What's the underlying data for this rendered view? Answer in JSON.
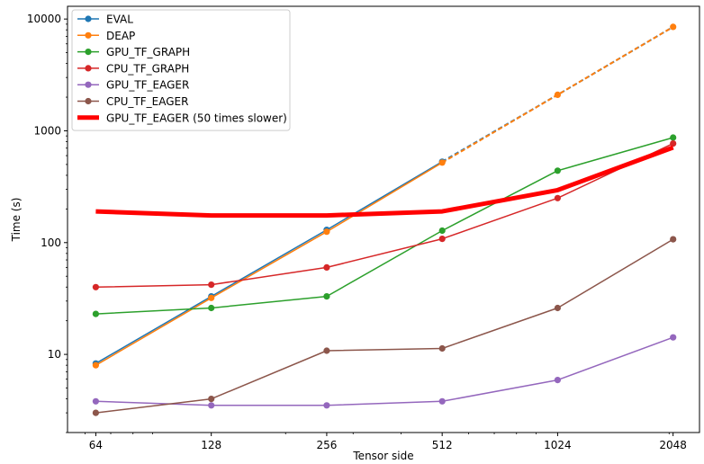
{
  "chart_data": {
    "type": "line",
    "title": "",
    "xlabel": "Tensor side",
    "ylabel": "Time (s)",
    "xscale": "log2",
    "yscale": "log10",
    "xlim": [
      54,
      2400
    ],
    "ylim": [
      2,
      13000
    ],
    "x_ticks": [
      64,
      128,
      256,
      512,
      1024,
      2048
    ],
    "x_tick_labels": [
      "64",
      "128",
      "256",
      "512",
      "1024",
      "2048"
    ],
    "y_ticks": [
      10,
      100,
      1000,
      10000
    ],
    "y_tick_labels": [
      "10",
      "100",
      "1000",
      "10000"
    ],
    "grid": false,
    "legend_position": "top-left",
    "series": [
      {
        "name": "EVAL",
        "color": "#1f77b4",
        "x": [
          64,
          128,
          256,
          512
        ],
        "values": [
          8.3,
          33,
          130,
          530
        ],
        "dashed_x": [
          512,
          1024,
          2048
        ],
        "dashed_values": [
          530,
          2100,
          8500
        ],
        "marker": true,
        "width": 1.5
      },
      {
        "name": "DEAP",
        "color": "#ff7f0e",
        "x": [
          64,
          128,
          256,
          512,
          1024,
          2048
        ],
        "values": [
          8.0,
          32,
          125,
          520,
          2100,
          8500
        ],
        "dashed_from_index": 3,
        "marker": true,
        "width": 1.5
      },
      {
        "name": "GPU_TF_GRAPH",
        "color": "#2ca02c",
        "x": [
          64,
          128,
          256,
          512,
          1024,
          2048
        ],
        "values": [
          23,
          26,
          33,
          128,
          440,
          870
        ],
        "marker": true,
        "width": 1.5
      },
      {
        "name": "CPU_TF_GRAPH",
        "color": "#d62728",
        "x": [
          64,
          128,
          256,
          512,
          1024,
          2048
        ],
        "values": [
          40,
          42,
          60,
          108,
          250,
          770
        ],
        "marker": true,
        "width": 1.5
      },
      {
        "name": "GPU_TF_EAGER",
        "color": "#9467bd",
        "x": [
          64,
          128,
          256,
          512,
          1024,
          2048
        ],
        "values": [
          3.8,
          3.5,
          3.5,
          3.8,
          5.9,
          14.2
        ],
        "marker": true,
        "width": 1.5
      },
      {
        "name": "CPU_TF_EAGER",
        "color": "#8c564b",
        "x": [
          64,
          128,
          256,
          512,
          1024,
          2048
        ],
        "values": [
          3.0,
          4.0,
          10.8,
          11.3,
          26,
          107
        ],
        "marker": true,
        "width": 1.5
      },
      {
        "name": "GPU_TF_EAGER (50 times slower)",
        "color": "#ff0000",
        "x": [
          64,
          128,
          256,
          512,
          1024,
          2048
        ],
        "values": [
          190,
          175,
          175,
          190,
          295,
          710
        ],
        "marker": false,
        "width": 5
      }
    ]
  }
}
